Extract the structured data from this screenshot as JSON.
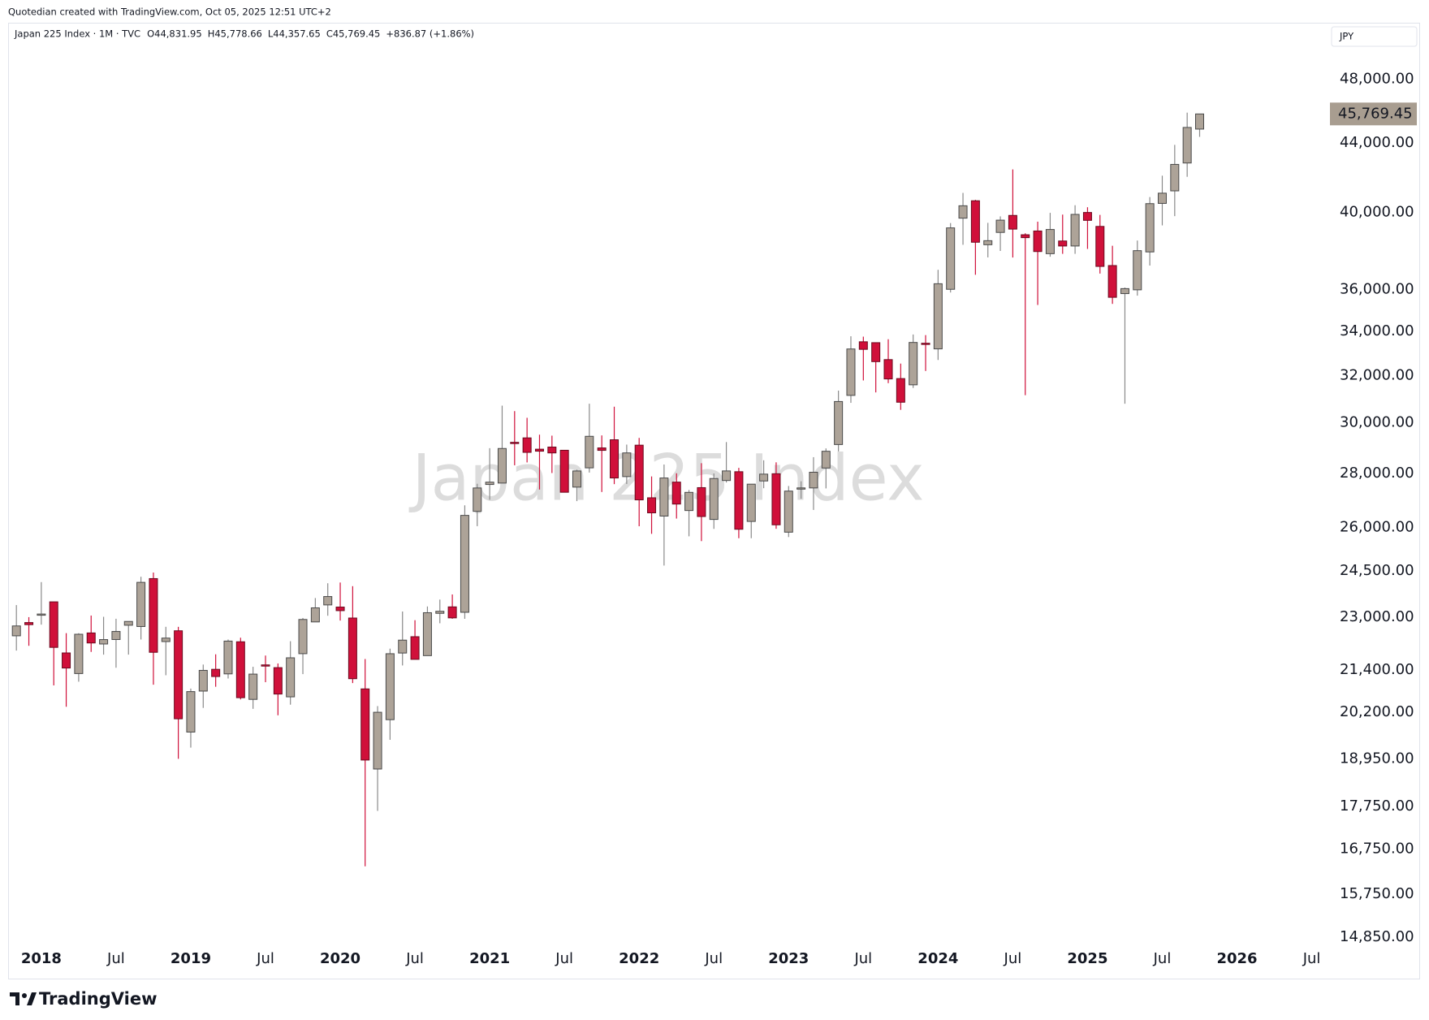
{
  "chart_data": {
    "type": "candlestick",
    "credit": "Quotedian created with TradingView.com, Oct 05, 2025 12:51 UTC+2",
    "title": "Japan 225 Index · 1M · TVC",
    "readout": [
      "O44,831.95",
      "H45,778.66",
      "L44,357.65",
      "C45,769.45",
      "+836.87 (+1.86%)"
    ],
    "watermark": "Japan 225 Index",
    "currency": "JPY",
    "brand": "TradingView",
    "log_scale": true,
    "grid": false,
    "up_color": "#ada398",
    "down_color": "#d0103a",
    "categories": [
      null,
      null,
      "2018",
      null,
      null,
      null,
      null,
      null,
      "Jul",
      null,
      null,
      null,
      null,
      null,
      "2019",
      null,
      null,
      null,
      null,
      null,
      "Jul",
      null,
      null,
      null,
      null,
      null,
      "2020",
      null,
      null,
      null,
      null,
      null,
      "Jul",
      null,
      null,
      null,
      null,
      null,
      "2021",
      null,
      null,
      null,
      null,
      null,
      "Jul",
      null,
      null,
      null,
      null,
      null,
      "2022",
      null,
      null,
      null,
      null,
      null,
      "Jul",
      null,
      null,
      null,
      null,
      null,
      "2023",
      null,
      null,
      null,
      null,
      null,
      "Jul",
      null,
      null,
      null,
      null,
      null,
      "2024",
      null,
      null,
      null,
      null,
      null,
      "Jul",
      null,
      null,
      null,
      null,
      null,
      "2025",
      null,
      null,
      null,
      null,
      null,
      "Jul",
      null,
      null,
      null,
      null,
      null,
      "2026",
      null,
      null,
      null,
      null,
      null,
      "Jul"
    ],
    "open": [
      22420,
      22830,
      23073,
      23486,
      21901,
      21292,
      22508,
      22171,
      22307,
      22747,
      22707,
      24245,
      22244,
      22575,
      19655,
      20788,
      21416,
      21283,
      22238,
      20553,
      21546,
      21465,
      20625,
      21879,
      22850,
      23388,
      23319,
      22972,
      20850,
      18686,
      19991,
      21898,
      22393,
      21820,
      23120,
      23325,
      23153,
      26580,
      27575,
      27628,
      29211,
      29389,
      28939,
      29023,
      28896,
      27476,
      28209,
      28989,
      29314,
      27873,
      29098,
      27078,
      26409,
      27665,
      26610,
      27456,
      26288,
      27725,
      28061,
      26216,
      27708,
      27983,
      25834,
      27402,
      27445,
      28203,
      29123,
      31148,
      33517,
      33476,
      32710,
      31872,
      31601,
      33450,
      33193,
      36011,
      39690,
      40646,
      38274,
      38923,
      39839,
      38800,
      39000,
      37809,
      38470,
      38208,
      40000,
      39245,
      37200,
      35800,
      35985,
      37900,
      40500,
      41200,
      42800,
      44831.95,
      null,
      null,
      null,
      null,
      null,
      null,
      null,
      null,
      null
    ],
    "high": [
      23382,
      23000,
      24129,
      23486,
      22502,
      22500,
      23050,
      23011,
      22949,
      22869,
      24306,
      24448,
      22698,
      22698,
      20859,
      21556,
      21860,
      22307,
      22362,
      21490,
      21823,
      21588,
      22255,
      22974,
      23608,
      24091,
      24115,
      23995,
      21719,
      20365,
      22030,
      23178,
      22904,
      23338,
      23559,
      23725,
      26800,
      27602,
      28979,
      30714,
      30485,
      30208,
      29518,
      29480,
      28896,
      28139,
      30795,
      29489,
      30670,
      29121,
      29388,
      27880,
      28338,
      28000,
      27369,
      28389,
      27993,
      29222,
      28209,
      27587,
      28502,
      28423,
      27517,
      27696,
      28624,
      28970,
      31352,
      33772,
      33753,
      33488,
      33634,
      32533,
      33853,
      33824,
      36984,
      39426,
      41087,
      40697,
      39437,
      39788,
      42426,
      38877,
      39500,
      39980,
      39884,
      40398,
      40288,
      39868,
      38220,
      36100,
      38494,
      40852,
      42065,
      43876,
      45852,
      45778.66,
      null,
      null,
      null,
      null,
      null,
      null,
      null,
      null,
      null
    ],
    "low": [
      21972,
      22116,
      22765,
      20950,
      20347,
      21056,
      21932,
      21850,
      21462,
      21851,
      22307,
      20971,
      21243,
      18949,
      19241,
      20315,
      20911,
      21148,
      20552,
      20289,
      21042,
      20111,
      20405,
      21276,
      22850,
      23044,
      22892,
      21017,
      16358,
      17646,
      19448,
      21529,
      21710,
      21820,
      22808,
      22948,
      22948,
      26046,
      27003,
      27628,
      28308,
      28419,
      27385,
      28010,
      27272,
      26954,
      28029,
      27293,
      27588,
      27594,
      26044,
      25775,
      24681,
      26319,
      25688,
      25520,
      25950,
      27650,
      25621,
      25621,
      27435,
      25953,
      25662,
      27040,
      26632,
      27427,
      28851,
      30831,
      31791,
      31275,
      31674,
      30538,
      31466,
      32205,
      32693,
      35854,
      38271,
      36733,
      37617,
      37950,
      37611,
      31156,
      35247,
      37651,
      37800,
      37800,
      38055,
      36794,
      35300,
      30793,
      35700,
      37200,
      39300,
      39800,
      42000,
      44357.65,
      null,
      null,
      null,
      null,
      null,
      null,
      null,
      null,
      null
    ],
    "close": [
      22725,
      22765,
      23098,
      22068,
      21454,
      22468,
      22202,
      22305,
      22554,
      22865,
      24120,
      21920,
      22351,
      20015,
      20773,
      21385,
      21206,
      22259,
      20601,
      21276,
      21522,
      20704,
      21756,
      22927,
      23294,
      23657,
      23205,
      21143,
      18917,
      20194,
      21878,
      22288,
      21710,
      23140,
      23185,
      22977,
      26434,
      27444,
      27663,
      28966,
      29179,
      28813,
      28860,
      28791,
      27283,
      28089,
      29453,
      28892,
      27822,
      28791,
      27001,
      26526,
      27821,
      26847,
      27279,
      26393,
      27801,
      28091,
      25937,
      27587,
      27968,
      26095,
      27327,
      27446,
      28041,
      28856,
      30888,
      33189,
      33172,
      32619,
      31857,
      30858,
      33486,
      33431,
      36286,
      39166,
      40369,
      38405,
      38487,
      39583,
      39101,
      38647,
      37920,
      39081,
      38208,
      39895,
      39572,
      37156,
      35618,
      36045,
      37965,
      40487,
      41070,
      42718,
      44932,
      45769.45,
      null,
      null,
      null,
      null,
      null,
      null,
      null,
      null,
      null
    ],
    "last_price": {
      "value": 45769.45,
      "label": "45,769.45"
    },
    "ylim": [
      14700,
      51850
    ],
    "yticks": [
      {
        "value": 14850,
        "label": "14,850.00"
      },
      {
        "value": 15750,
        "label": "15,750.00"
      },
      {
        "value": 16750,
        "label": "16,750.00"
      },
      {
        "value": 17750,
        "label": "17,750.00"
      },
      {
        "value": 18950,
        "label": "18,950.00"
      },
      {
        "value": 20200,
        "label": "20,200.00"
      },
      {
        "value": 21400,
        "label": "21,400.00"
      },
      {
        "value": 23000,
        "label": "23,000.00"
      },
      {
        "value": 24500,
        "label": "24,500.00"
      },
      {
        "value": 26000,
        "label": "26,000.00"
      },
      {
        "value": 28000,
        "label": "28,000.00"
      },
      {
        "value": 30000,
        "label": "30,000.00"
      },
      {
        "value": 32000,
        "label": "32,000.00"
      },
      {
        "value": 34000,
        "label": "34,000.00"
      },
      {
        "value": 36000,
        "label": "36,000.00"
      },
      {
        "value": 40000,
        "label": "40,000.00"
      },
      {
        "value": 44000,
        "label": "44,000.00"
      },
      {
        "value": 48000,
        "label": "48,000.00"
      }
    ]
  }
}
